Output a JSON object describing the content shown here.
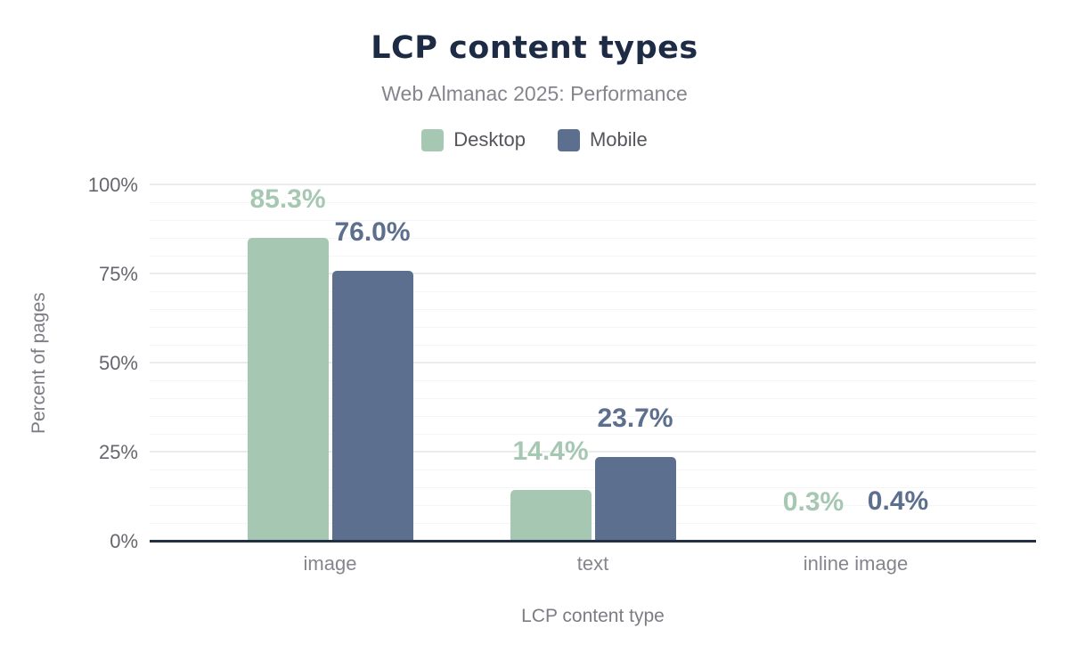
{
  "chart_data": {
    "type": "bar",
    "title": "LCP content types",
    "subtitle": "Web Almanac 2025: Performance",
    "xlabel": "LCP content type",
    "ylabel": "Percent of pages",
    "categories": [
      "image",
      "text",
      "inline image"
    ],
    "series": [
      {
        "name": "Desktop",
        "color": "#a6c8b3",
        "values": [
          85.3,
          14.4,
          0.3
        ],
        "labels": [
          "85.3%",
          "14.4%",
          "0.3%"
        ]
      },
      {
        "name": "Mobile",
        "color": "#5c6f8e",
        "values": [
          76.0,
          23.7,
          0.4
        ],
        "labels": [
          "76.0%",
          "23.7%",
          "0.4%"
        ]
      }
    ],
    "ylim": [
      0,
      100
    ],
    "y_ticks": [
      "0%",
      "25%",
      "50%",
      "75%",
      "100%"
    ],
    "grid": {
      "minor_step": 5,
      "major_step": 25,
      "visible": true
    },
    "legend_position": "top"
  },
  "colors": {
    "background": "#ffffff",
    "title": "#1d2b45",
    "subtitle": "#85858d",
    "legend_text": "#55555c",
    "axis_line": "#232f45",
    "tick_text": "#66666e",
    "category_text": "#85858d",
    "axis_title_text": "#7c7c84",
    "grid_minor": "#f5f5f7",
    "grid_major": "#ebebee"
  }
}
